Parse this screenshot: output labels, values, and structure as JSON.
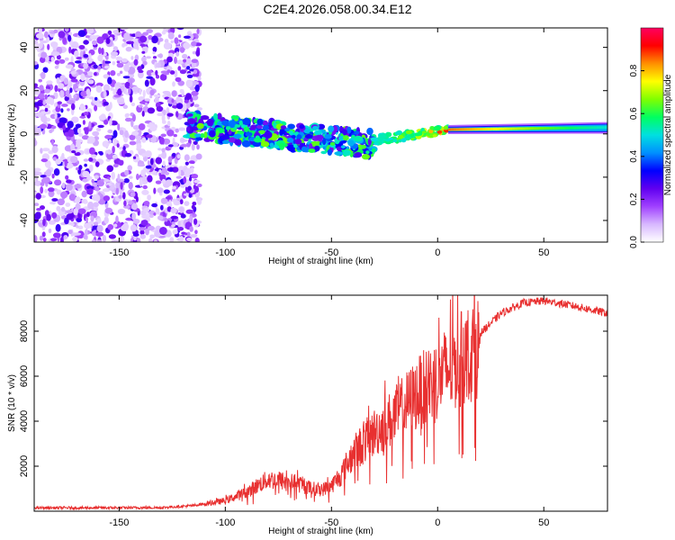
{
  "title": "C2E4.2026.058.00.34.E12",
  "chart_data": [
    {
      "type": "heatmap",
      "name": "spectrogram",
      "xlabel": "Height of straight line (km)",
      "ylabel": "Frequency (Hz)",
      "xlim": [
        -190,
        80
      ],
      "ylim": [
        -50,
        49
      ],
      "xticks": [
        -150,
        -100,
        -50,
        0,
        50
      ],
      "yticks": [
        -40,
        -20,
        0,
        20,
        40
      ],
      "colorbar": {
        "label": "Normalized spectral amplitude",
        "range": [
          0,
          1
        ],
        "ticks": [
          0.0,
          0.2,
          0.4,
          0.6,
          0.8
        ],
        "colors": [
          "#ffffff",
          "#d8b8ff",
          "#a040ff",
          "#6000f0",
          "#0000ff",
          "#0090ff",
          "#00e0e0",
          "#00ff60",
          "#80ff00",
          "#ffff00",
          "#ff9000",
          "#ff0000",
          "#ff0060"
        ]
      },
      "regions": [
        {
          "description": "scattered noise",
          "x": [
            -190,
            -112
          ],
          "freq": [
            -50,
            49
          ],
          "amplitude": [
            0.05,
            0.3
          ]
        },
        {
          "description": "broad signal band",
          "x": [
            -118,
            -30
          ],
          "freq_center": [
            4,
            -5
          ],
          "amplitude": [
            0.2,
            0.65
          ]
        },
        {
          "description": "narrowing band",
          "x": [
            -30,
            5
          ],
          "freq_center": [
            -3,
            2
          ],
          "amplitude": [
            0.45,
            0.9
          ]
        },
        {
          "description": "coherent line",
          "x": [
            5,
            80
          ],
          "freq_center": [
            2,
            3
          ],
          "amplitude": [
            0.85,
            0.5
          ]
        }
      ]
    },
    {
      "type": "line",
      "name": "snr",
      "xlabel": "Height of straight line (km)",
      "ylabel": "SNR (10 * v/v)",
      "xlim": [
        -190,
        80
      ],
      "ylim": [
        0,
        9600
      ],
      "xticks": [
        -150,
        -100,
        -50,
        0,
        50
      ],
      "yticks": [
        2000,
        4000,
        6000,
        8000
      ],
      "color": "#e83030",
      "envelope": {
        "x": [
          -190,
          -160,
          -130,
          -115,
          -100,
          -90,
          -80,
          -70,
          -60,
          -55,
          -50,
          -45,
          -40,
          -35,
          -30,
          -25,
          -20,
          -15,
          -10,
          -5,
          0,
          5,
          10,
          20,
          30,
          40,
          50,
          60,
          70,
          80
        ],
        "y": [
          150,
          150,
          160,
          250,
          500,
          900,
          1500,
          1400,
          1100,
          1000,
          1200,
          1800,
          2700,
          3200,
          3700,
          4100,
          4500,
          5000,
          5500,
          5900,
          6300,
          6700,
          7100,
          7900,
          8800,
          9250,
          9350,
          9200,
          9000,
          8800
        ]
      }
    }
  ]
}
